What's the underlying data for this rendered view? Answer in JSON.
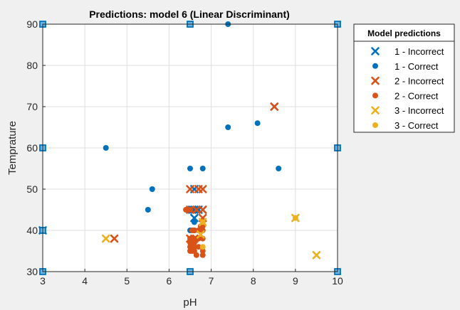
{
  "chart_data": {
    "type": "scatter",
    "title": "Predictions: model 6 (Linear Discriminant)",
    "xlabel": "pH",
    "ylabel": "Temprature",
    "xlim": [
      3,
      10
    ],
    "ylim": [
      30,
      90
    ],
    "xticks": [
      3,
      4,
      5,
      6,
      7,
      8,
      9,
      10
    ],
    "yticks": [
      30,
      40,
      50,
      60,
      70,
      80,
      90
    ],
    "grid": true,
    "legend_title": "Model predictions",
    "legend_position": "outside-top-right",
    "series": [
      {
        "name": "1 - Incorrect",
        "marker": "x",
        "color": "#0072bd",
        "points": [
          [
            3,
            40
          ],
          [
            6.6,
            50
          ],
          [
            6.55,
            45
          ],
          [
            6.6,
            45
          ],
          [
            6.7,
            45
          ],
          [
            6.8,
            45
          ],
          [
            6.6,
            43
          ],
          [
            8.5,
            70
          ]
        ]
      },
      {
        "name": "1 - Correct",
        "marker": "dot",
        "color": "#0072bd",
        "points": [
          [
            7.4,
            90
          ],
          [
            4.5,
            60
          ],
          [
            7.4,
            65
          ],
          [
            8.1,
            66
          ],
          [
            8.6,
            55
          ],
          [
            6.5,
            55
          ],
          [
            6.8,
            55
          ],
          [
            5.6,
            50
          ],
          [
            5.5,
            45
          ],
          [
            6.5,
            45
          ],
          [
            6.5,
            40
          ],
          [
            6.6,
            40
          ],
          [
            6.6,
            42
          ]
        ]
      },
      {
        "name": "2 - Incorrect",
        "marker": "x",
        "color": "#d95319",
        "points": [
          [
            4.7,
            38
          ],
          [
            6.5,
            50
          ],
          [
            6.7,
            50
          ],
          [
            6.8,
            50
          ],
          [
            6.5,
            45
          ],
          [
            6.65,
            45
          ],
          [
            6.8,
            45
          ],
          [
            6.8,
            43
          ],
          [
            8.5,
            70
          ],
          [
            6.5,
            38
          ],
          [
            6.6,
            38
          ]
        ]
      },
      {
        "name": "2 - Correct",
        "marker": "dot",
        "color": "#d95319",
        "points": [
          [
            6.4,
            45
          ],
          [
            6.5,
            45
          ],
          [
            6.45,
            45
          ],
          [
            6.6,
            40
          ],
          [
            6.55,
            40
          ],
          [
            6.7,
            40
          ],
          [
            6.75,
            41
          ],
          [
            6.8,
            41
          ],
          [
            6.8,
            40
          ],
          [
            6.5,
            38
          ],
          [
            6.55,
            38
          ],
          [
            6.6,
            38
          ],
          [
            6.65,
            38
          ],
          [
            6.5,
            37
          ],
          [
            6.55,
            37
          ],
          [
            6.6,
            37
          ],
          [
            6.5,
            36
          ],
          [
            6.6,
            36
          ],
          [
            6.7,
            36
          ],
          [
            6.5,
            35
          ],
          [
            6.55,
            35
          ],
          [
            6.6,
            35
          ],
          [
            6.65,
            34
          ],
          [
            6.8,
            35
          ],
          [
            6.8,
            34
          ],
          [
            6.8,
            38
          ],
          [
            6.7,
            38
          ]
        ]
      },
      {
        "name": "3 - Incorrect",
        "marker": "x",
        "color": "#edb120",
        "points": [
          [
            4.5,
            38
          ],
          [
            9.0,
            43
          ],
          [
            9.5,
            34
          ],
          [
            6.8,
            42
          ],
          [
            6.75,
            39
          ]
        ]
      },
      {
        "name": "3 - Correct",
        "marker": "dot",
        "color": "#edb120",
        "points": [
          [
            6.8,
            42
          ],
          [
            6.8,
            36
          ],
          [
            9.0,
            43
          ]
        ]
      }
    ],
    "boundary_markers": {
      "marker": "square",
      "color": "#0072bd",
      "fill": "#6db3e0",
      "points": [
        [
          3,
          90
        ],
        [
          6.5,
          90
        ],
        [
          10,
          90
        ],
        [
          3,
          60
        ],
        [
          10,
          60
        ],
        [
          3,
          40
        ],
        [
          3,
          30
        ],
        [
          6.5,
          30
        ],
        [
          10,
          30
        ]
      ]
    }
  }
}
